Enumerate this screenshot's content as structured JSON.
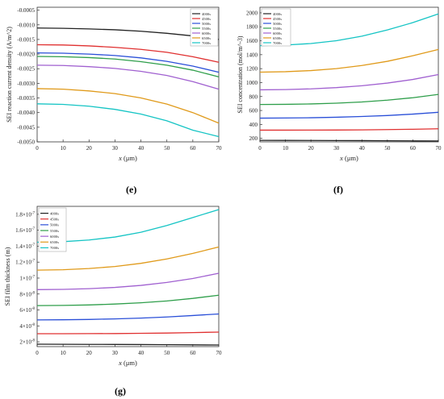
{
  "panels": [
    {
      "caption": "(e)",
      "chart_data": {
        "type": "line",
        "ylabel": "SEI reaction current density (A/m^2)",
        "xlabel_italic": "x",
        "xlabel_unit": " (μm)",
        "xlim": [
          0,
          70
        ],
        "ylim": [
          -0.005,
          -0.0004
        ],
        "x_ticks": [
          0,
          10,
          20,
          30,
          40,
          50,
          60,
          70
        ],
        "y_ticks": [
          "-0.0005",
          "-0.0010",
          "-0.0015",
          "-0.0020",
          "-0.0025",
          "-0.0030",
          "-0.0035",
          "-0.0040",
          "-0.0045",
          "-0.0050"
        ],
        "x": [
          0,
          10,
          20,
          30,
          40,
          50,
          60,
          70
        ],
        "series": [
          {
            "name": "4000s",
            "color": "#222222",
            "values": [
              -0.00111,
              -0.00112,
              -0.00114,
              -0.00117,
              -0.00122,
              -0.00129,
              -0.00138,
              -0.0015
            ]
          },
          {
            "name": "4500s",
            "color": "#e03030",
            "values": [
              -0.00168,
              -0.00169,
              -0.00172,
              -0.00177,
              -0.00184,
              -0.00194,
              -0.00209,
              -0.00228
            ]
          },
          {
            "name": "5000s",
            "color": "#2a4fd8",
            "values": [
              -0.00196,
              -0.00197,
              -0.002,
              -0.00205,
              -0.00213,
              -0.00225,
              -0.00241,
              -0.00262
            ]
          },
          {
            "name": "5500s",
            "color": "#2e9e4a",
            "values": [
              -0.00208,
              -0.00209,
              -0.00212,
              -0.00217,
              -0.00226,
              -0.00238,
              -0.00255,
              -0.00278
            ]
          },
          {
            "name": "6000s",
            "color": "#a060d0",
            "values": [
              -0.00238,
              -0.00239,
              -0.00243,
              -0.00249,
              -0.00259,
              -0.00273,
              -0.00294,
              -0.0032
            ]
          },
          {
            "name": "6500s",
            "color": "#e09a1a",
            "values": [
              -0.00318,
              -0.0032,
              -0.00326,
              -0.00335,
              -0.0035,
              -0.00371,
              -0.004,
              -0.00436
            ]
          },
          {
            "name": "7000s",
            "color": "#14c4c4",
            "values": [
              -0.0037,
              -0.00372,
              -0.00378,
              -0.00389,
              -0.00405,
              -0.00428,
              -0.0046,
              -0.00482
            ]
          }
        ]
      }
    },
    {
      "caption": "(f)",
      "chart_data": {
        "type": "line",
        "ylabel": "SEI concentration (mol/m^-3)",
        "xlabel_italic": "x",
        "xlabel_unit": " (μm)",
        "xlim": [
          0,
          70
        ],
        "ylim": [
          150,
          2080
        ],
        "x_ticks": [
          0,
          10,
          20,
          30,
          40,
          50,
          60,
          70
        ],
        "y_ticks": [
          "200",
          "400",
          "600",
          "800",
          "1000",
          "1200",
          "1400",
          "1600",
          "1800",
          "2000"
        ],
        "x": [
          0,
          10,
          20,
          30,
          40,
          50,
          60,
          70
        ],
        "series": [
          {
            "name": "4000s",
            "color": "#222222",
            "values": [
              172,
              171,
              170,
              169,
              168,
              166,
              164,
              162
            ]
          },
          {
            "name": "4500s",
            "color": "#e03030",
            "values": [
              318,
              318,
              319,
              320,
              322,
              326,
              331,
              338
            ]
          },
          {
            "name": "5000s",
            "color": "#2a4fd8",
            "values": [
              490,
              492,
              496,
              503,
              514,
              528,
              548,
              574
            ]
          },
          {
            "name": "5500s",
            "color": "#2e9e4a",
            "values": [
              686,
              688,
              694,
              705,
              722,
              748,
              783,
              830
            ]
          },
          {
            "name": "6000s",
            "color": "#a060d0",
            "values": [
              896,
              900,
              910,
              928,
              955,
              993,
              1045,
              1115
            ]
          },
          {
            "name": "6500s",
            "color": "#e09a1a",
            "values": [
              1150,
              1156,
              1172,
              1200,
              1245,
              1305,
              1385,
              1475
            ]
          },
          {
            "name": "7000s",
            "color": "#14c4c4",
            "values": [
              1530,
              1538,
              1560,
              1600,
              1665,
              1755,
              1860,
              1985
            ]
          }
        ]
      }
    },
    {
      "caption": "(g)",
      "chart_data": {
        "type": "line",
        "ylabel": "SEI film thickness (m)",
        "xlabel_italic": "x",
        "xlabel_unit": " (μm)",
        "xlim": [
          0,
          70
        ],
        "ylim": [
          1.4e-08,
          1.9e-07
        ],
        "x_ticks": [
          0,
          10,
          20,
          30,
          40,
          50,
          60,
          70
        ],
        "y_ticks": [
          {
            "value": 2e-08,
            "base": "2×10",
            "exp": "-8"
          },
          {
            "value": 4e-08,
            "base": "4×10",
            "exp": "-8"
          },
          {
            "value": 6e-08,
            "base": "6×10",
            "exp": "-8"
          },
          {
            "value": 8e-08,
            "base": "8×10",
            "exp": "-8"
          },
          {
            "value": 1e-07,
            "base": "1×10",
            "exp": "-7"
          },
          {
            "value": 1.2e-07,
            "base": "1.2×10",
            "exp": "-7"
          },
          {
            "value": 1.4e-07,
            "base": "1.4×10",
            "exp": "-7"
          },
          {
            "value": 1.6e-07,
            "base": "1.6×10",
            "exp": "-7"
          },
          {
            "value": 1.8e-07,
            "base": "1.8×10",
            "exp": "-7"
          }
        ],
        "x": [
          0,
          10,
          20,
          30,
          40,
          50,
          60,
          70
        ],
        "series": [
          {
            "name": "4000s",
            "color": "#222222",
            "values": [
              1.7e-08,
              1.69e-08,
              1.68e-08,
              1.67e-08,
              1.66e-08,
              1.64e-08,
              1.62e-08,
              1.6e-08
            ]
          },
          {
            "name": "4500s",
            "color": "#e03030",
            "values": [
              3.02e-08,
              3.02e-08,
              3.03e-08,
              3.04e-08,
              3.07e-08,
              3.1e-08,
              3.16e-08,
              3.22e-08
            ]
          },
          {
            "name": "5000s",
            "color": "#2a4fd8",
            "values": [
              4.75e-08,
              4.77e-08,
              4.81e-08,
              4.88e-08,
              4.98e-08,
              5.12e-08,
              5.3e-08,
              5.5e-08
            ]
          },
          {
            "name": "5500s",
            "color": "#2e9e4a",
            "values": [
              6.55e-08,
              6.57e-08,
              6.63e-08,
              6.74e-08,
              6.9e-08,
              7.13e-08,
              7.45e-08,
              7.85e-08
            ]
          },
          {
            "name": "6000s",
            "color": "#a060d0",
            "values": [
              8.55e-08,
              8.58e-08,
              8.67e-08,
              8.83e-08,
              9.08e-08,
              9.45e-08,
              9.95e-08,
              1.06e-07
            ]
          },
          {
            "name": "6500s",
            "color": "#e09a1a",
            "values": [
              1.1e-07,
              1.105e-07,
              1.12e-07,
              1.145e-07,
              1.185e-07,
              1.24e-07,
              1.31e-07,
              1.39e-07
            ]
          },
          {
            "name": "7000s",
            "color": "#14c4c4",
            "values": [
              1.45e-07,
              1.457e-07,
              1.478e-07,
              1.515e-07,
              1.575e-07,
              1.66e-07,
              1.76e-07,
              1.86e-07
            ]
          }
        ]
      }
    }
  ]
}
